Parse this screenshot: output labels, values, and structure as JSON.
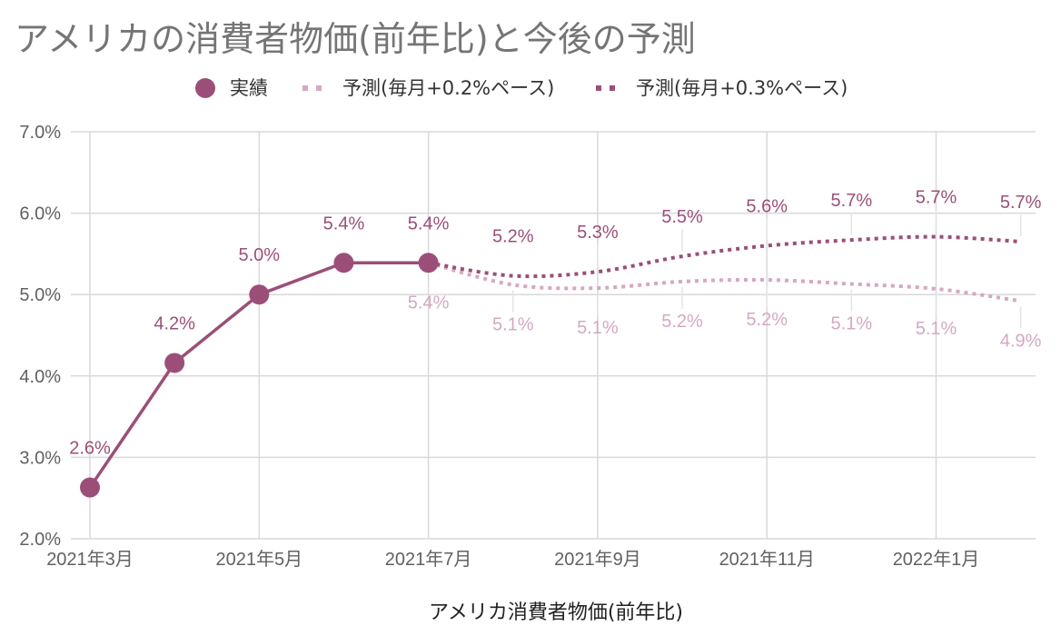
{
  "title": "アメリカの消費者物価(前年比)と今後の予測",
  "colors": {
    "actual": "#9b4f78",
    "forecast02": "#d5a8c3",
    "forecast03": "#9b4f78",
    "grid": "#d9d9d9",
    "axis_text": "#616161"
  },
  "chart_data": {
    "type": "line",
    "title": "アメリカの消費者物価(前年比)と今後の予測",
    "xlabel": "アメリカ消費者物価(前年比)",
    "ylabel": "",
    "ylim": [
      2.0,
      7.0
    ],
    "yticks": [
      "2.0%",
      "3.0%",
      "4.0%",
      "5.0%",
      "6.0%",
      "7.0%"
    ],
    "x": [
      "2021年3月",
      "2021年4月",
      "2021年5月",
      "2021年6月",
      "2021年7月",
      "2021年8月",
      "2021年9月",
      "2021年10月",
      "2021年11月",
      "2021年12月",
      "2022年1月",
      "2022年2月"
    ],
    "xtick_labels": [
      {
        "index": 0,
        "label": "2021年3月"
      },
      {
        "index": 2,
        "label": "2021年5月"
      },
      {
        "index": 4,
        "label": "2021年7月"
      },
      {
        "index": 6,
        "label": "2021年9月"
      },
      {
        "index": 8,
        "label": "2021年11月"
      },
      {
        "index": 10,
        "label": "2022年1月"
      }
    ],
    "grid": true,
    "legend_position": "top",
    "series": [
      {
        "name": "実績",
        "style": "solid-markers",
        "values": [
          2.63,
          4.16,
          5.0,
          5.39,
          5.39,
          null,
          null,
          null,
          null,
          null,
          null,
          null
        ],
        "labels": [
          "2.6%",
          "4.2%",
          "5.0%",
          "5.4%",
          "5.4%",
          null,
          null,
          null,
          null,
          null,
          null,
          null
        ]
      },
      {
        "name": "予測(毎月+0.2%ペース)",
        "style": "dotted",
        "values": [
          null,
          null,
          null,
          null,
          5.39,
          5.12,
          5.08,
          5.16,
          5.18,
          5.13,
          5.07,
          4.92
        ],
        "labels": [
          null,
          null,
          null,
          null,
          "5.4%",
          "5.1%",
          "5.1%",
          "5.2%",
          "5.2%",
          "5.1%",
          "5.1%",
          "4.9%"
        ]
      },
      {
        "name": "予測(毎月+0.3%ペース)",
        "style": "dotted",
        "values": [
          null,
          null,
          null,
          null,
          5.39,
          5.23,
          5.28,
          5.47,
          5.6,
          5.67,
          5.71,
          5.65
        ],
        "labels": [
          null,
          null,
          null,
          null,
          null,
          "5.2%",
          "5.3%",
          "5.5%",
          "5.6%",
          "5.7%",
          "5.7%",
          "5.7%"
        ]
      }
    ]
  }
}
